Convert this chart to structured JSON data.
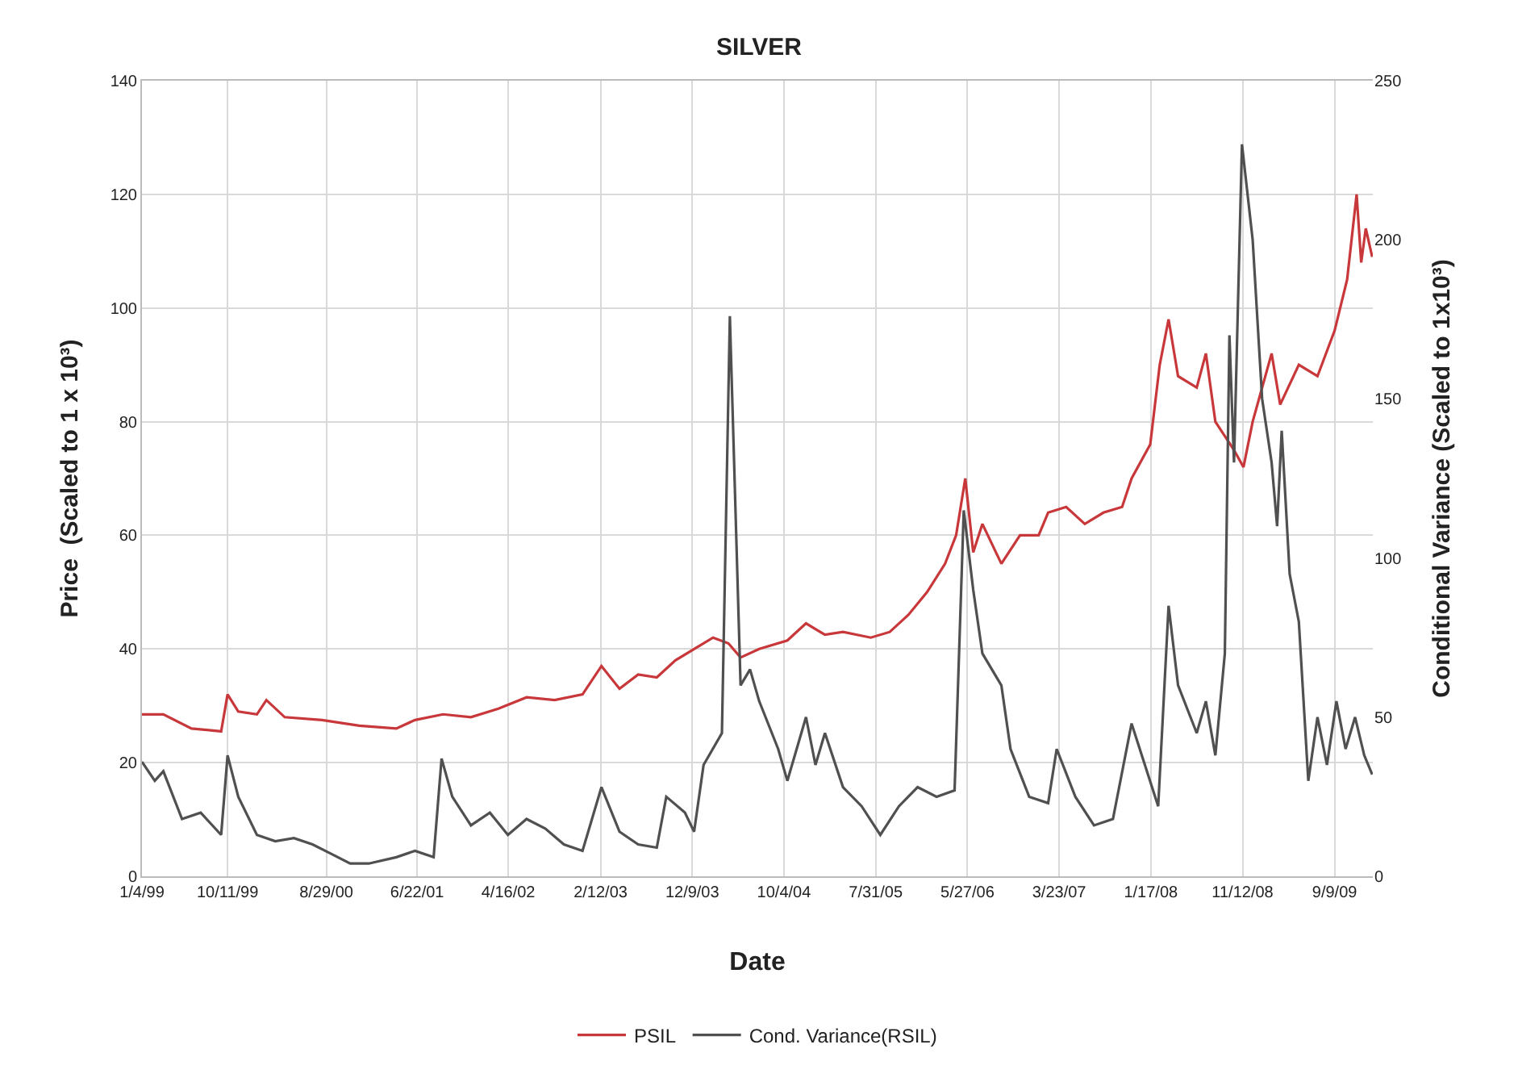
{
  "chart_data": {
    "type": "line",
    "title": "SILVER",
    "xlabel": "Date",
    "ylabel": "Price  (Scaled to 1 x 10³)",
    "y2label": "Conditional Variance (Scaled to 1x10³)",
    "xlim": [
      "1999-01-04",
      "2010-01-12"
    ],
    "xticks": [
      {
        "value": "1999-01-04",
        "label": "1/4/99"
      },
      {
        "value": "1999-10-11",
        "label": "10/11/99"
      },
      {
        "value": "2000-08-29",
        "label": "8/29/00"
      },
      {
        "value": "2001-06-22",
        "label": "6/22/01"
      },
      {
        "value": "2002-04-16",
        "label": "4/16/02"
      },
      {
        "value": "2003-02-12",
        "label": "2/12/03"
      },
      {
        "value": "2003-12-09",
        "label": "12/9/03"
      },
      {
        "value": "2004-10-04",
        "label": "10/4/04"
      },
      {
        "value": "2005-07-31",
        "label": "7/31/05"
      },
      {
        "value": "2006-05-27",
        "label": "5/27/06"
      },
      {
        "value": "2007-03-23",
        "label": "3/23/07"
      },
      {
        "value": "2008-01-17",
        "label": "1/17/08"
      },
      {
        "value": "2008-11-12",
        "label": "11/12/08"
      },
      {
        "value": "2009-09-09",
        "label": "9/9/09"
      }
    ],
    "ylim": [
      0,
      140
    ],
    "yticks": [
      0,
      20,
      40,
      60,
      80,
      100,
      120,
      140
    ],
    "y2lim": [
      0,
      250
    ],
    "y2ticks": [
      0,
      50,
      100,
      150,
      200,
      250
    ],
    "grid": true,
    "legend": "bottom",
    "marker": "none",
    "line_style": "solid",
    "series": [
      {
        "name": "PSIL",
        "color": "#c8373a",
        "x": [
          "1999-01-04",
          "1999-03-15",
          "1999-06-15",
          "1999-09-20",
          "1999-10-11",
          "1999-11-15",
          "2000-01-15",
          "2000-02-15",
          "2000-04-15",
          "2000-08-15",
          "2000-12-15",
          "2001-04-15",
          "2001-06-15",
          "2001-09-15",
          "2001-12-15",
          "2002-03-15",
          "2002-06-15",
          "2002-09-15",
          "2002-12-15",
          "2003-02-15",
          "2003-04-15",
          "2003-06-15",
          "2003-08-15",
          "2003-10-15",
          "2003-12-15",
          "2004-02-15",
          "2004-04-05",
          "2004-05-15",
          "2004-07-15",
          "2004-10-15",
          "2004-12-15",
          "2005-02-15",
          "2005-04-15",
          "2005-07-15",
          "2005-09-15",
          "2005-11-15",
          "2006-01-15",
          "2006-03-15",
          "2006-04-20",
          "2006-05-20",
          "2006-06-15",
          "2006-07-15",
          "2006-09-15",
          "2006-11-15",
          "2007-01-15",
          "2007-02-15",
          "2007-04-15",
          "2007-06-15",
          "2007-08-15",
          "2007-10-15",
          "2007-11-15",
          "2008-01-15",
          "2008-02-15",
          "2008-03-15",
          "2008-04-15",
          "2008-06-15",
          "2008-07-15",
          "2008-08-15",
          "2008-10-15",
          "2008-11-15",
          "2008-12-15",
          "2009-02-15",
          "2009-03-15",
          "2009-05-15",
          "2009-07-15",
          "2009-09-09",
          "2009-10-20",
          "2009-11-20",
          "2009-12-05",
          "2009-12-20",
          "2010-01-10"
        ],
        "values": [
          28.5,
          28.5,
          26,
          25.5,
          32,
          29,
          28.5,
          31,
          28,
          27.5,
          26.5,
          26,
          27.5,
          28.5,
          28,
          29.5,
          31.5,
          31,
          32,
          37,
          33,
          35.5,
          35,
          38,
          40,
          42,
          41,
          38.5,
          40,
          41.5,
          44.5,
          42.5,
          43,
          42,
          43,
          46,
          50,
          55,
          60,
          70,
          57,
          62,
          55,
          60,
          60,
          64,
          65,
          62,
          64,
          65,
          70,
          76,
          90,
          98,
          88,
          86,
          92,
          80,
          75,
          72,
          80,
          92,
          83,
          90,
          88,
          96,
          105,
          120,
          108,
          114,
          109
        ]
      },
      {
        "name": "Cond. Variance(RSIL)",
        "color": "#505050",
        "axis": "y2",
        "x": [
          "1999-01-04",
          "1999-02-15",
          "1999-03-15",
          "1999-05-15",
          "1999-07-15",
          "1999-09-20",
          "1999-10-11",
          "1999-11-15",
          "2000-01-15",
          "2000-03-15",
          "2000-05-15",
          "2000-07-15",
          "2000-09-15",
          "2000-11-15",
          "2001-01-15",
          "2001-04-15",
          "2001-06-15",
          "2001-08-15",
          "2001-09-10",
          "2001-10-15",
          "2001-12-15",
          "2002-02-15",
          "2002-04-15",
          "2002-06-15",
          "2002-08-15",
          "2002-10-15",
          "2002-12-15",
          "2003-02-15",
          "2003-04-15",
          "2003-06-15",
          "2003-08-15",
          "2003-09-15",
          "2003-11-15",
          "2003-12-15",
          "2004-01-15",
          "2004-03-15",
          "2004-04-10",
          "2004-05-15",
          "2004-06-15",
          "2004-07-15",
          "2004-09-15",
          "2004-10-15",
          "2004-12-15",
          "2005-01-15",
          "2005-02-15",
          "2005-04-15",
          "2005-06-15",
          "2005-08-15",
          "2005-10-15",
          "2005-12-15",
          "2006-02-15",
          "2006-04-15",
          "2006-05-15",
          "2006-06-15",
          "2006-07-15",
          "2006-09-15",
          "2006-10-15",
          "2006-12-15",
          "2007-02-15",
          "2007-03-15",
          "2007-05-15",
          "2007-07-15",
          "2007-09-15",
          "2007-11-15",
          "2008-02-10",
          "2008-03-15",
          "2008-04-15",
          "2008-06-15",
          "2008-07-15",
          "2008-08-15",
          "2008-09-15",
          "2008-09-30",
          "2008-10-15",
          "2008-11-10",
          "2008-12-15",
          "2009-01-15",
          "2009-02-15",
          "2009-03-05",
          "2009-03-20",
          "2009-04-15",
          "2009-05-15",
          "2009-06-15",
          "2009-07-15",
          "2009-08-15",
          "2009-09-15",
          "2009-10-15",
          "2009-11-15",
          "2009-12-15",
          "2010-01-10"
        ],
        "values": [
          36,
          30,
          33,
          18,
          20,
          13,
          38,
          25,
          13,
          11,
          12,
          10,
          7,
          4,
          4,
          6,
          8,
          6,
          37,
          25,
          16,
          20,
          13,
          18,
          15,
          10,
          8,
          28,
          14,
          10,
          9,
          25,
          20,
          14,
          35,
          45,
          176,
          60,
          65,
          55,
          40,
          30,
          50,
          35,
          45,
          28,
          22,
          13,
          22,
          28,
          25,
          27,
          115,
          90,
          70,
          60,
          40,
          25,
          23,
          40,
          25,
          16,
          18,
          48,
          22,
          85,
          60,
          45,
          55,
          38,
          70,
          170,
          130,
          230,
          200,
          150,
          130,
          110,
          140,
          95,
          80,
          30,
          50,
          35,
          55,
          40,
          50,
          38,
          32
        ]
      }
    ]
  }
}
